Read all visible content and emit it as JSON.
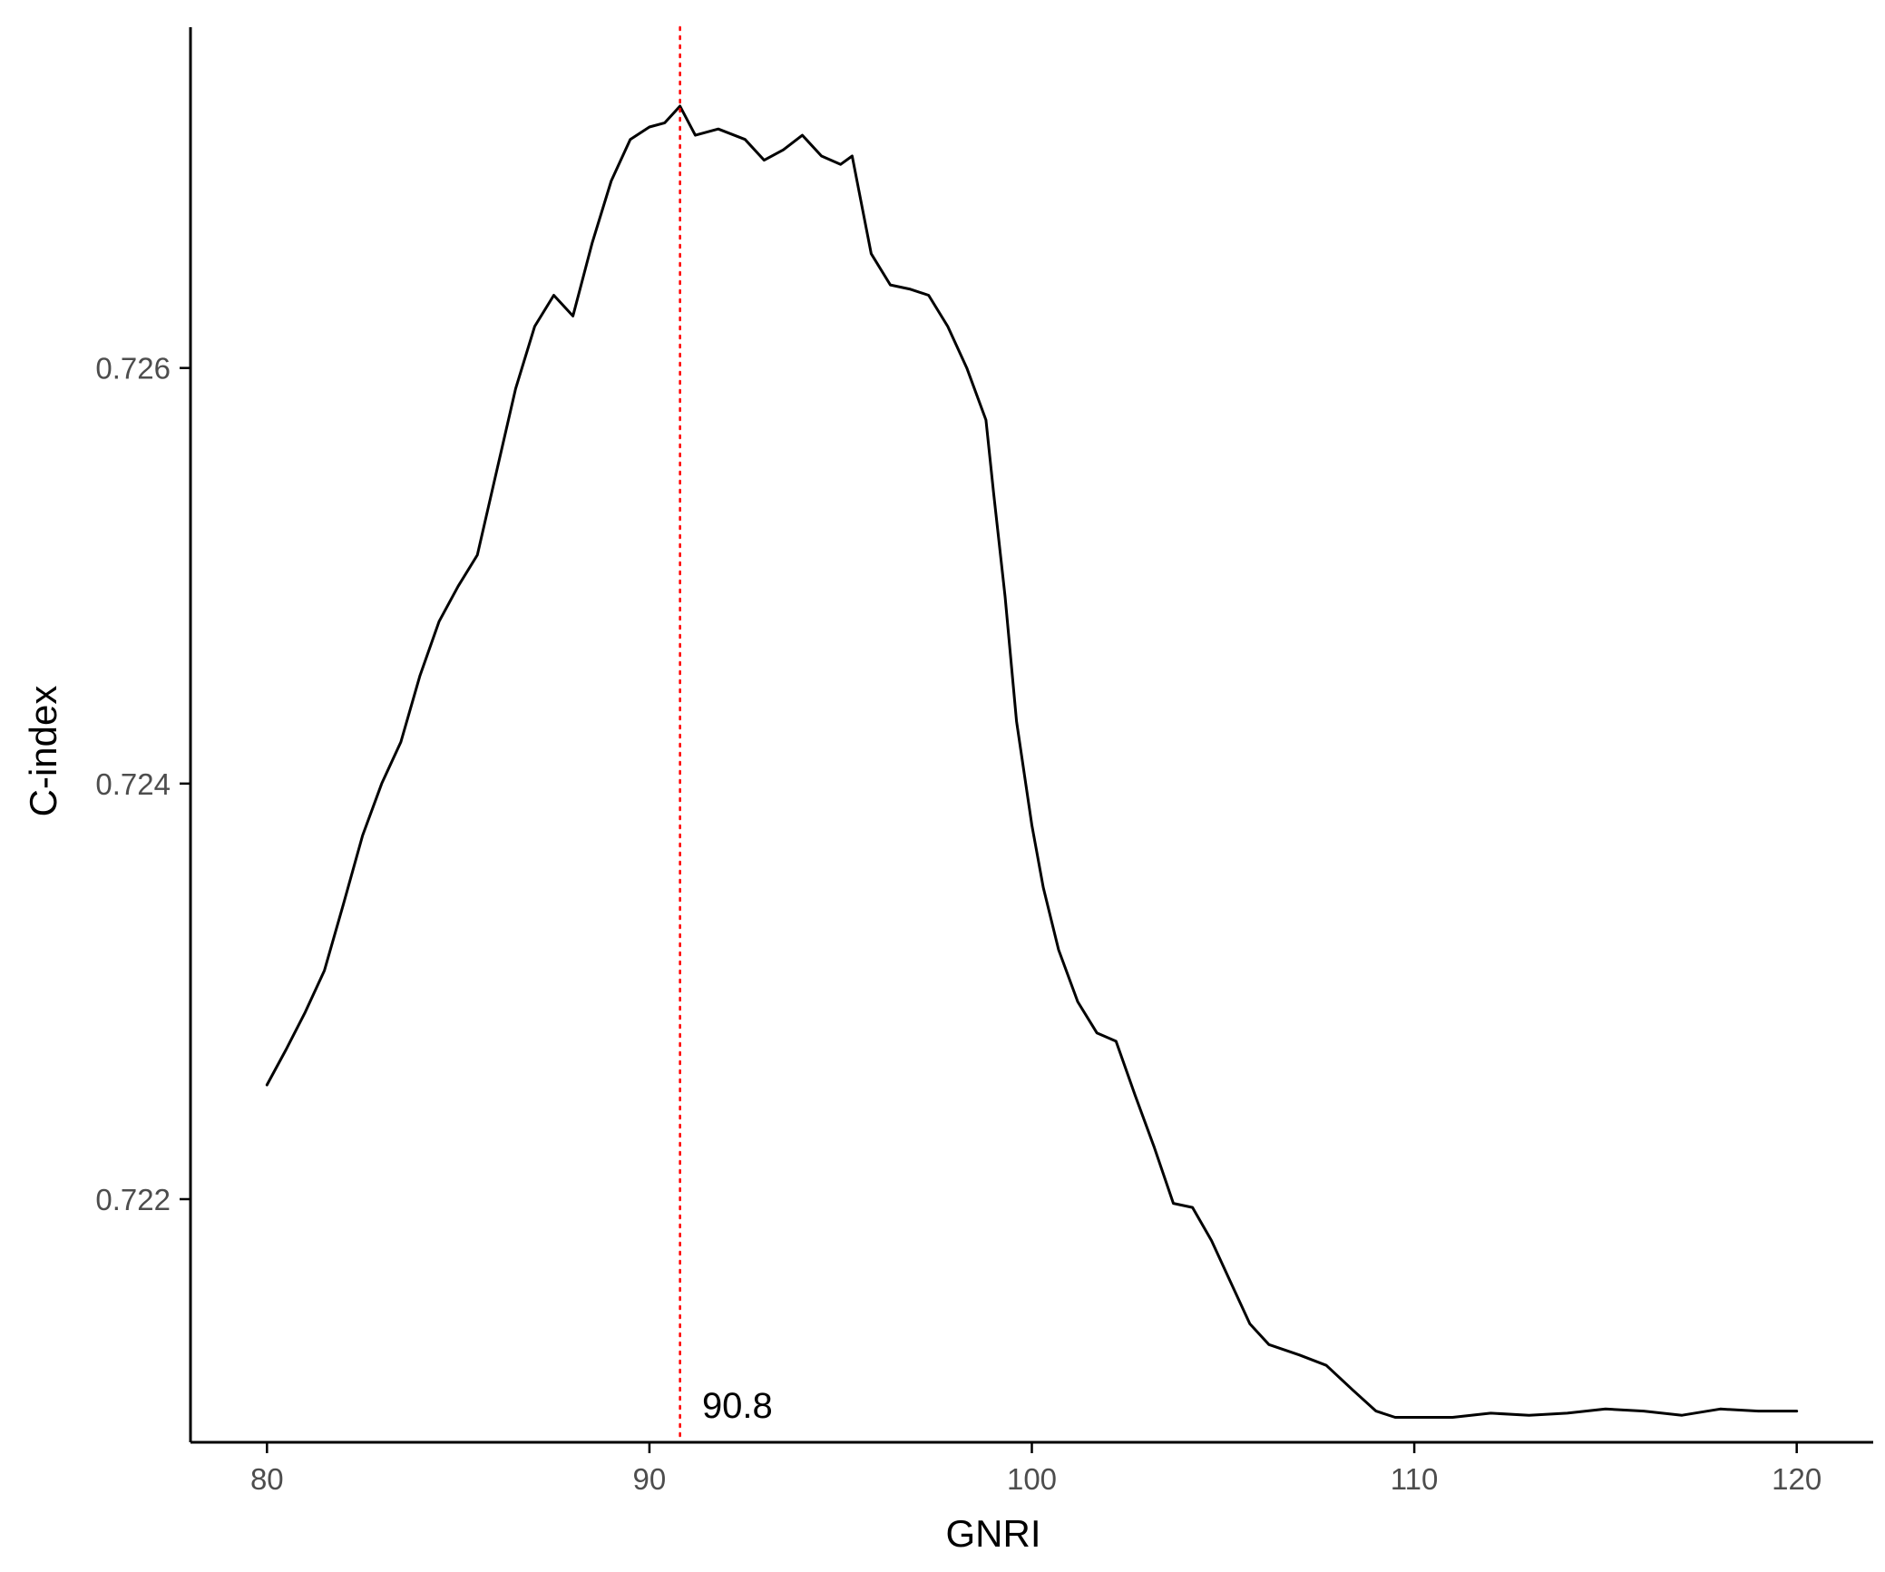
{
  "chart_data": {
    "type": "line",
    "title": "",
    "xlabel": "GNRI",
    "ylabel": "C-index",
    "xlim": [
      78,
      122
    ],
    "ylim": [
      0.72083,
      0.72764
    ],
    "x_ticks": [
      80,
      90,
      100,
      110,
      120
    ],
    "x_tick_labels": [
      "80",
      "90",
      "100",
      "110",
      "120"
    ],
    "y_ticks": [
      0.722,
      0.724,
      0.726
    ],
    "y_tick_labels": [
      "0.722",
      "0.724",
      "0.726"
    ],
    "grid": false,
    "legend": "none",
    "series": [
      {
        "color": "#000000",
        "x": [
          80.0,
          80.5,
          81.0,
          81.5,
          82.0,
          82.5,
          83.0,
          83.5,
          84.0,
          84.5,
          85.0,
          85.5,
          86.0,
          86.5,
          87.0,
          87.5,
          88.0,
          88.5,
          89.0,
          89.5,
          90.0,
          90.4,
          90.8,
          91.2,
          91.8,
          92.5,
          93.0,
          93.5,
          94.0,
          94.5,
          95.0,
          95.3,
          95.8,
          96.3,
          96.8,
          97.3,
          97.8,
          98.3,
          98.8,
          99.0,
          99.3,
          99.6,
          100.0,
          100.3,
          100.7,
          101.2,
          101.7,
          102.2,
          102.7,
          103.2,
          103.7,
          104.2,
          104.7,
          105.2,
          105.7,
          106.2,
          107.0,
          107.7,
          108.4,
          109.0,
          109.5,
          110.0,
          111.0,
          112.0,
          113.0,
          114.0,
          115.0,
          116.0,
          117.0,
          118.0,
          119.0,
          120.0
        ],
        "values": [
          0.72255,
          0.72272,
          0.7229,
          0.7231,
          0.72342,
          0.72375,
          0.724,
          0.7242,
          0.72452,
          0.72478,
          0.72495,
          0.7251,
          0.7255,
          0.7259,
          0.7262,
          0.72635,
          0.72625,
          0.7266,
          0.7269,
          0.7271,
          0.72716,
          0.72718,
          0.72726,
          0.72712,
          0.72715,
          0.7271,
          0.727,
          0.72705,
          0.72712,
          0.72702,
          0.72698,
          0.72702,
          0.72655,
          0.7264,
          0.72638,
          0.72635,
          0.7262,
          0.726,
          0.72575,
          0.7254,
          0.7249,
          0.7243,
          0.7238,
          0.7235,
          0.7232,
          0.72295,
          0.7228,
          0.72276,
          0.7225,
          0.72225,
          0.72198,
          0.72196,
          0.7218,
          0.7216,
          0.7214,
          0.7213,
          0.72125,
          0.7212,
          0.72108,
          0.72098,
          0.72095,
          0.72095,
          0.72095,
          0.72097,
          0.72096,
          0.72097,
          0.72099,
          0.72098,
          0.72096,
          0.72099,
          0.72098,
          0.72098
        ]
      }
    ],
    "annotations": [
      {
        "type": "vline",
        "x": 90.8,
        "color": "#ff0000",
        "style": "dotted"
      },
      {
        "type": "text",
        "x": 92.3,
        "y": 0.72101,
        "text": "90.8"
      }
    ]
  }
}
